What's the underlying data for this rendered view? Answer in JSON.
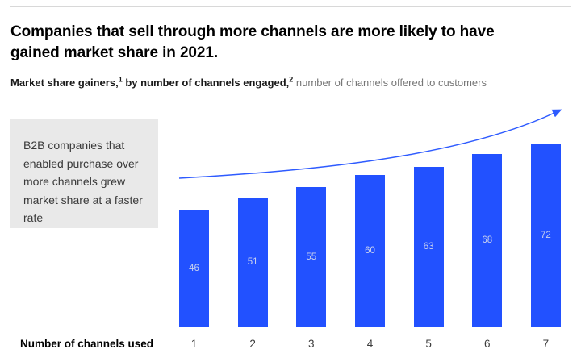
{
  "header": {
    "title": "Companies that sell through more channels are more likely to have gained market share in 2021.",
    "subtitle": {
      "bold1": "Market share gainers,",
      "sup1": "1",
      "bold2": " by number of channels engaged,",
      "sup2": "2",
      "regular": " number of channels offered to customers"
    }
  },
  "callout": {
    "text": "B2B companies that enabled purchase over more channels grew market share at a faster rate"
  },
  "chart_data": {
    "type": "bar",
    "categories": [
      "1",
      "2",
      "3",
      "4",
      "5",
      "6",
      "7"
    ],
    "values": [
      46,
      51,
      55,
      60,
      63,
      68,
      72
    ],
    "title": "Companies that sell through more channels are more likely to have gained market share in 2021.",
    "subtitle": "Market share gainers, by number of channels engaged, number of channels offered to customers",
    "xlabel": "Number of channels used",
    "ylabel": "",
    "ylim": [
      0,
      78
    ],
    "grid": false,
    "y_axis_visible": false,
    "value_labels_position": "inside-center",
    "annotation": "upward curved trend arrow above bars",
    "colors": {
      "bar": "#2251ff",
      "bar_label": "#c9d1ee",
      "arrow": "#2e5bff",
      "axis_line": "#d8d8d8",
      "callout_bg": "#e9e9e9"
    }
  }
}
